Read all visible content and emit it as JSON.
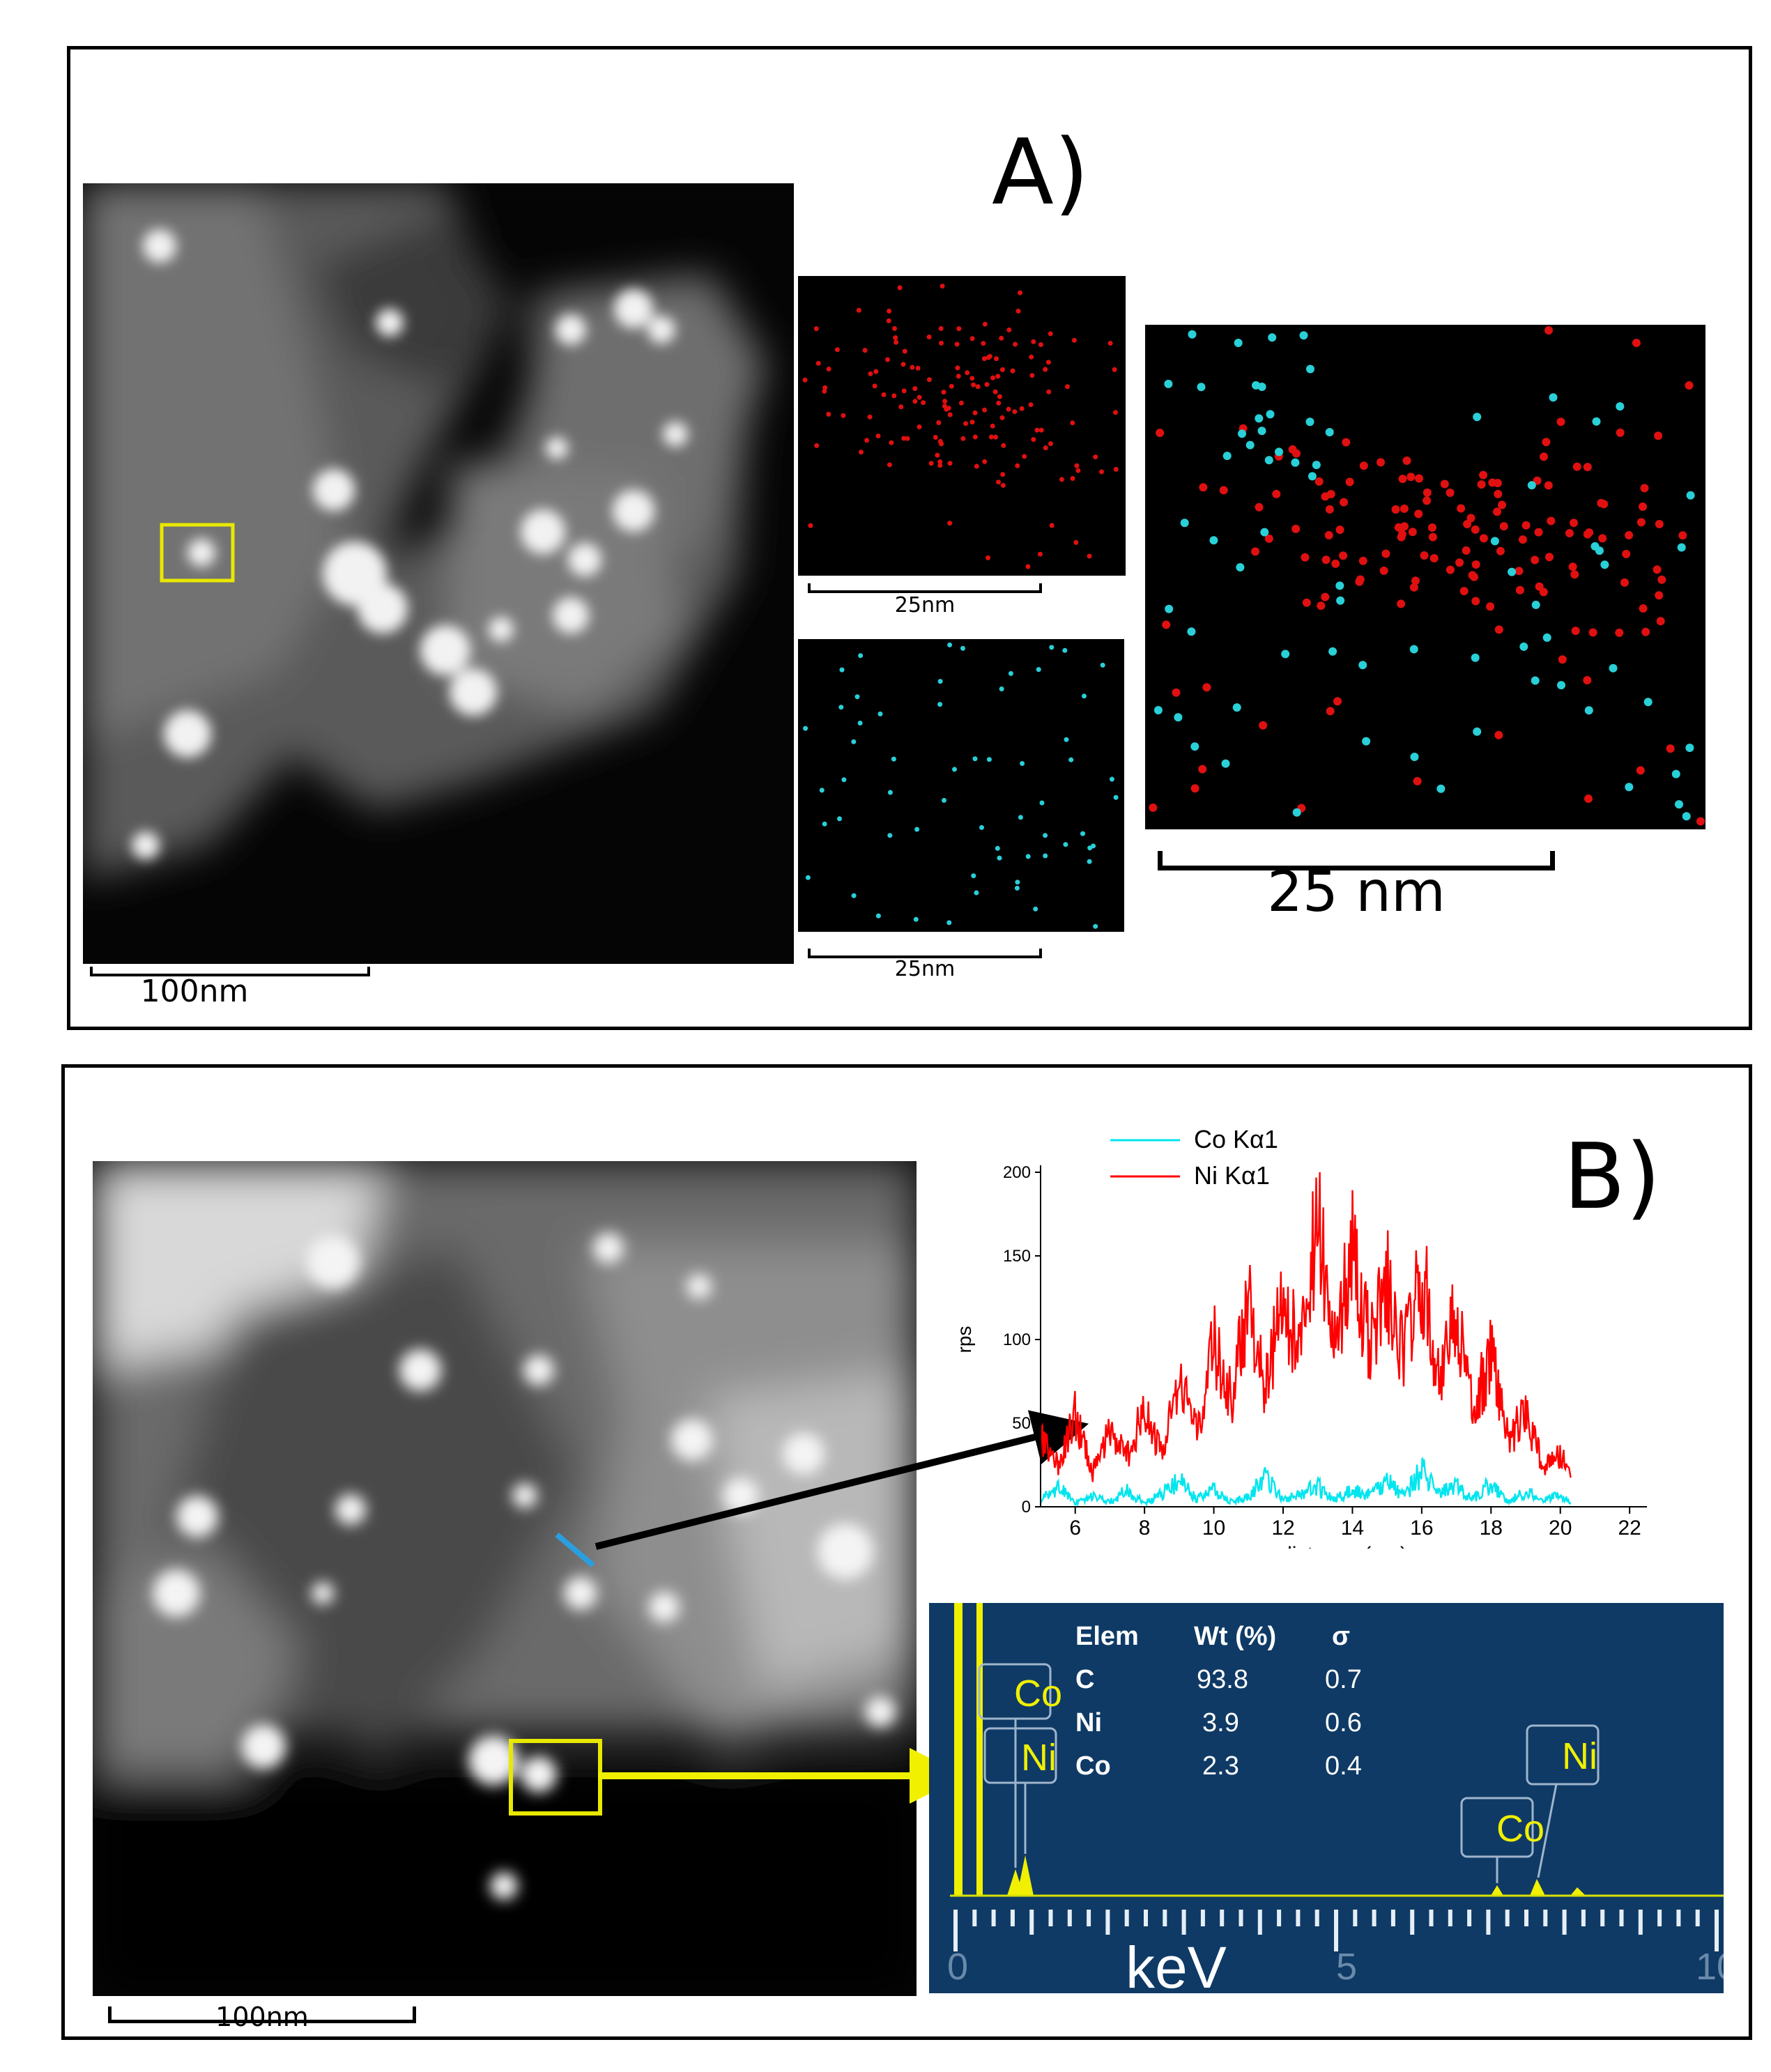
{
  "panelA": {
    "label": "A)",
    "haadf_scale": "100nm",
    "ni_map_scale": "25nm",
    "co_map_scale": "25nm",
    "overlay_scale": "25 nm",
    "colors": {
      "ni": "#e01010",
      "co": "#29d0d8",
      "box": "#e8e800"
    }
  },
  "panelB": {
    "label": "B)",
    "haadf_scale": "100nm",
    "linescan": {
      "legend": [
        {
          "name": "Co  Kα1",
          "color": "#00e5ee"
        },
        {
          "name": "Ni  Kα1",
          "color": "#ff0000"
        }
      ]
    },
    "edx": {
      "headers": [
        "Elem",
        "Wt (%)",
        "σ"
      ],
      "rows": [
        {
          "elem": "C",
          "wt": "93.8",
          "sigma": "0.7"
        },
        {
          "elem": "Ni",
          "wt": "3.9",
          "sigma": "0.6"
        },
        {
          "elem": "Co",
          "wt": "2.3",
          "sigma": "0.4"
        }
      ],
      "peak_labels": {
        "co_low": "Co",
        "ni_low": "Ni",
        "co_high": "Co",
        "ni_high": "Ni"
      },
      "axis_label": "keV",
      "axis_ticks": [
        "0",
        "5",
        "10"
      ],
      "background_color": "#0f3a66",
      "peak_color": "#f0f000"
    }
  },
  "chart_data": {
    "type": "line",
    "title": "",
    "xlabel": "distance (nm)",
    "ylabel": "rps",
    "xlim": [
      5,
      22.5
    ],
    "ylim": [
      0,
      200
    ],
    "xticks": [
      6,
      8,
      10,
      12,
      14,
      16,
      18,
      20,
      22
    ],
    "yticks": [
      0,
      50,
      100,
      150,
      200
    ],
    "legend": "top-left",
    "series": [
      {
        "name": "Co  Kα1",
        "x": [
          5.0,
          5.5,
          6.0,
          6.5,
          7.0,
          7.5,
          8.0,
          8.5,
          9.0,
          9.5,
          10.0,
          10.5,
          11.0,
          11.5,
          12.0,
          12.5,
          13.0,
          13.5,
          14.0,
          14.5,
          15.0,
          15.5,
          16.0,
          16.5,
          17.0,
          17.5,
          18.0,
          18.5,
          19.0,
          19.5,
          20.0,
          20.3
        ],
        "y": [
          4,
          12,
          2,
          6,
          3,
          10,
          2,
          8,
          15,
          5,
          10,
          3,
          6,
          18,
          4,
          8,
          12,
          5,
          10,
          7,
          15,
          6,
          22,
          8,
          12,
          5,
          14,
          3,
          9,
          4,
          7,
          2
        ]
      },
      {
        "name": "Ni  Kα1",
        "x": [
          5.0,
          5.5,
          6.0,
          6.5,
          7.0,
          7.5,
          8.0,
          8.5,
          9.0,
          9.5,
          10.0,
          10.5,
          11.0,
          11.5,
          12.0,
          12.5,
          13.0,
          13.5,
          14.0,
          14.5,
          15.0,
          15.5,
          16.0,
          16.5,
          17.0,
          17.5,
          18.0,
          18.5,
          19.0,
          19.5,
          20.0,
          20.3
        ],
        "y": [
          40,
          25,
          55,
          20,
          45,
          30,
          60,
          30,
          75,
          45,
          100,
          65,
          120,
          70,
          125,
          90,
          175,
          110,
          150,
          95,
          135,
          90,
          140,
          80,
          115,
          60,
          90,
          40,
          55,
          25,
          30,
          20
        ]
      }
    ]
  }
}
